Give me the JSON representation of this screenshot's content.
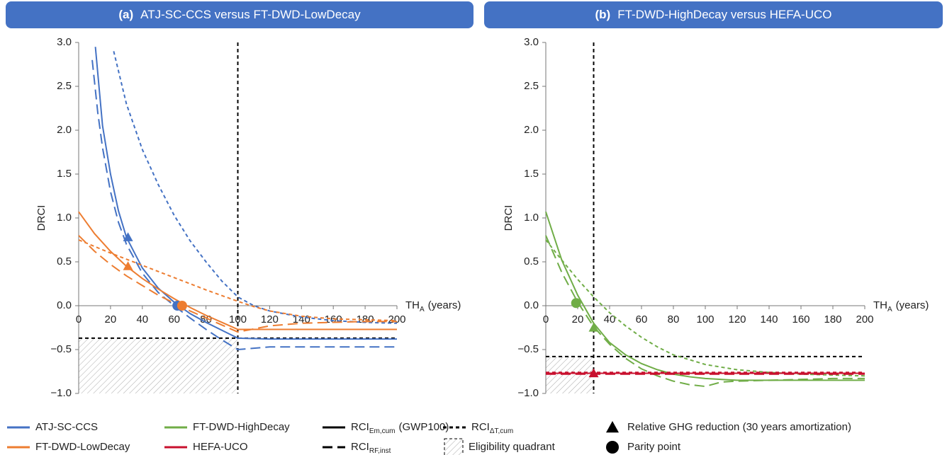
{
  "chart_data": [
    {
      "type": "line",
      "panel_label": "(a)",
      "title": "ATJ-SC-CCS versus FT-DWD-LowDecay",
      "title_color": "#4472c4",
      "y_label": "DRCI",
      "x_label": "TH",
      "x_label_sub": "A",
      "x_label_unit": "(years)",
      "xlim": [
        0,
        200
      ],
      "ylim": [
        -1,
        3
      ],
      "xticks": [
        0,
        20,
        40,
        60,
        80,
        100,
        120,
        140,
        160,
        180,
        200
      ],
      "yticks": [
        {
          "value": -1,
          "label": "−1.0"
        },
        {
          "value": -0.5,
          "label": "−0.5"
        },
        {
          "value": 0,
          "label": "0.0"
        },
        {
          "value": 0.5,
          "label": "0.5"
        },
        {
          "value": 1,
          "label": "1.0"
        },
        {
          "value": 1.5,
          "label": "1.5"
        },
        {
          "value": 2,
          "label": "2.0"
        },
        {
          "value": 2.5,
          "label": "2.5"
        },
        {
          "value": 3,
          "label": "3.0"
        }
      ],
      "threshold_x": 100,
      "threshold_y": -0.37,
      "series": [
        {
          "name": "ATJ-SC-CCS",
          "color": "#4472c4",
          "dash": "solid",
          "x": [
            10.5,
            15,
            20,
            25,
            30,
            40,
            50,
            60,
            70,
            80,
            90,
            100,
            120,
            140,
            160,
            180,
            200
          ],
          "values": [
            2.95,
            2.05,
            1.5,
            1.08,
            0.78,
            0.43,
            0.2,
            0.04,
            -0.09,
            -0.19,
            -0.28,
            -0.37,
            -0.38,
            -0.38,
            -0.38,
            -0.38,
            -0.38
          ]
        },
        {
          "name": "ATJ-SC-CCS",
          "color": "#4472c4",
          "dash": "long",
          "x": [
            8.5,
            12,
            15,
            20,
            25,
            30,
            40,
            50,
            60,
            70,
            80,
            90,
            100,
            120,
            140,
            160,
            180,
            200
          ],
          "values": [
            2.8,
            2.2,
            1.8,
            1.3,
            0.95,
            0.7,
            0.37,
            0.15,
            0,
            -0.14,
            -0.27,
            -0.39,
            -0.5,
            -0.47,
            -0.47,
            -0.47,
            -0.47,
            -0.47
          ]
        },
        {
          "name": "ATJ-SC-CCS",
          "color": "#4472c4",
          "dash": "short",
          "x": [
            22,
            30,
            40,
            50,
            60,
            70,
            80,
            90,
            100,
            110,
            120,
            140,
            160,
            180,
            200
          ],
          "values": [
            2.9,
            2.3,
            1.78,
            1.38,
            1.03,
            0.74,
            0.5,
            0.28,
            0.1,
            0,
            -0.06,
            -0.13,
            -0.17,
            -0.19,
            -0.2
          ]
        },
        {
          "name": "FT-DWD-LowDecay",
          "color": "#ed7d31",
          "dash": "solid",
          "x": [
            0,
            10,
            20,
            30,
            40,
            50,
            60,
            70,
            80,
            90,
            100,
            120,
            140,
            160,
            180,
            200
          ],
          "values": [
            1.07,
            0.82,
            0.62,
            0.45,
            0.31,
            0.19,
            0.08,
            -0.02,
            -0.11,
            -0.19,
            -0.27,
            -0.27,
            -0.27,
            -0.27,
            -0.27,
            -0.27
          ]
        },
        {
          "name": "FT-DWD-LowDecay",
          "color": "#ed7d31",
          "dash": "long",
          "x": [
            0,
            10,
            20,
            30,
            40,
            50,
            60,
            70,
            80,
            90,
            100,
            120,
            140,
            160,
            180,
            200
          ],
          "values": [
            0.8,
            0.62,
            0.47,
            0.34,
            0.23,
            0.12,
            0.03,
            -0.06,
            -0.14,
            -0.22,
            -0.3,
            -0.23,
            -0.2,
            -0.19,
            -0.18,
            -0.18
          ]
        },
        {
          "name": "FT-DWD-LowDecay",
          "color": "#ed7d31",
          "dash": "short",
          "x": [
            0,
            20,
            40,
            60,
            80,
            100,
            110,
            120,
            140,
            160,
            180,
            200
          ],
          "values": [
            0.75,
            0.6,
            0.46,
            0.32,
            0.18,
            0.05,
            -0.01,
            -0.06,
            -0.12,
            -0.15,
            -0.16,
            -0.17
          ]
        }
      ],
      "markers": [
        {
          "shape": "triangle",
          "color": "#4472c4",
          "x": 31,
          "y": 0.78
        },
        {
          "shape": "triangle",
          "color": "#ed7d31",
          "x": 31,
          "y": 0.45
        },
        {
          "shape": "circle",
          "color": "#4472c4",
          "x": 62,
          "y": 0
        },
        {
          "shape": "circle",
          "color": "#ed7d31",
          "x": 65,
          "y": 0
        }
      ]
    },
    {
      "type": "line",
      "panel_label": "(b)",
      "title": "FT-DWD-HighDecay versus HEFA-UCO",
      "title_color": "#4472c4",
      "y_label": "DRCI",
      "x_label": "TH",
      "x_label_sub": "A",
      "x_label_unit": "(years)",
      "xlim": [
        0,
        200
      ],
      "ylim": [
        -1,
        3
      ],
      "xticks": [
        0,
        20,
        40,
        60,
        80,
        100,
        120,
        140,
        160,
        180,
        200
      ],
      "yticks": [
        {
          "value": -1,
          "label": "−1.0"
        },
        {
          "value": -0.5,
          "label": "−0.5"
        },
        {
          "value": 0,
          "label": "0.0"
        },
        {
          "value": 0.5,
          "label": "0.5"
        },
        {
          "value": 1,
          "label": "1.0"
        },
        {
          "value": 1.5,
          "label": "1.5"
        },
        {
          "value": 2,
          "label": "2.0"
        },
        {
          "value": 2.5,
          "label": "2.5"
        },
        {
          "value": 3,
          "label": "3.0"
        }
      ],
      "threshold_x": 30,
      "threshold_y": -0.58,
      "series": [
        {
          "name": "FT-DWD-HighDecay",
          "color": "#70ad47",
          "dash": "solid",
          "x": [
            0,
            10,
            20,
            30,
            40,
            50,
            60,
            70,
            80,
            90,
            100,
            120,
            140,
            160,
            180,
            200
          ],
          "values": [
            1.07,
            0.52,
            0.12,
            -0.2,
            -0.42,
            -0.56,
            -0.66,
            -0.73,
            -0.78,
            -0.81,
            -0.83,
            -0.85,
            -0.85,
            -0.85,
            -0.85,
            -0.85
          ]
        },
        {
          "name": "FT-DWD-HighDecay",
          "color": "#70ad47",
          "dash": "long",
          "x": [
            0,
            10,
            20,
            30,
            40,
            50,
            60,
            70,
            80,
            90,
            100,
            110,
            120,
            140,
            160,
            180,
            200
          ],
          "values": [
            0.8,
            0.38,
            0.04,
            -0.24,
            -0.44,
            -0.6,
            -0.72,
            -0.8,
            -0.86,
            -0.9,
            -0.92,
            -0.87,
            -0.86,
            -0.85,
            -0.84,
            -0.83,
            -0.83
          ]
        },
        {
          "name": "FT-DWD-HighDecay",
          "color": "#70ad47",
          "dash": "short",
          "x": [
            0,
            10,
            20,
            30,
            40,
            50,
            60,
            70,
            80,
            100,
            120,
            140,
            160,
            180,
            200
          ],
          "values": [
            0.75,
            0.52,
            0.3,
            0.1,
            -0.08,
            -0.23,
            -0.36,
            -0.47,
            -0.56,
            -0.67,
            -0.73,
            -0.76,
            -0.78,
            -0.79,
            -0.8
          ]
        },
        {
          "name": "HEFA-UCO",
          "color": "#c8102e",
          "dash": "solid",
          "x": [
            0,
            200
          ],
          "values": [
            -0.77,
            -0.77
          ]
        },
        {
          "name": "HEFA-UCO",
          "color": "#c8102e",
          "dash": "long",
          "x": [
            0,
            200
          ],
          "values": [
            -0.78,
            -0.78
          ]
        },
        {
          "name": "HEFA-UCO",
          "color": "#c8102e",
          "dash": "short",
          "x": [
            0,
            200
          ],
          "values": [
            -0.76,
            -0.76
          ]
        }
      ],
      "markers": [
        {
          "shape": "circle",
          "color": "#70ad47",
          "x": 19,
          "y": 0.03
        },
        {
          "shape": "triangle",
          "color": "#70ad47",
          "x": 30,
          "y": -0.25
        },
        {
          "shape": "triangle",
          "color": "#c8102e",
          "x": 30,
          "y": -0.77
        }
      ]
    }
  ],
  "legend": [
    {
      "symbol": "line",
      "color": "#4472c4",
      "dash": "solid",
      "label": "ATJ-SC-CCS"
    },
    {
      "symbol": "line",
      "color": "#ed7d31",
      "dash": "solid",
      "label": "FT-DWD-LowDecay"
    },
    {
      "symbol": "line",
      "color": "#70ad47",
      "dash": "solid",
      "label": "FT-DWD-HighDecay"
    },
    {
      "symbol": "line",
      "color": "#c8102e",
      "dash": "solid",
      "label": "HEFA-UCO"
    },
    {
      "symbol": "line",
      "color": "#000000",
      "dash": "solid",
      "label": "RCI",
      "label_sub": "Em,cum",
      "label_suffix": "(GWP100)"
    },
    {
      "symbol": "line",
      "color": "#000000",
      "dash": "long",
      "label": "RCI",
      "label_sub": "RF,inst"
    },
    {
      "symbol": "line",
      "color": "#000000",
      "dash": "short",
      "label": "RCI",
      "label_sub": "ΔT,cum"
    },
    {
      "symbol": "box",
      "color": "#000000",
      "label": "Eligibility quadrant"
    },
    {
      "symbol": "triangle",
      "color": "#000000",
      "label": "Relative GHG reduction (30 years amortization)"
    },
    {
      "symbol": "circle",
      "color": "#000000",
      "label": "Parity point"
    }
  ]
}
